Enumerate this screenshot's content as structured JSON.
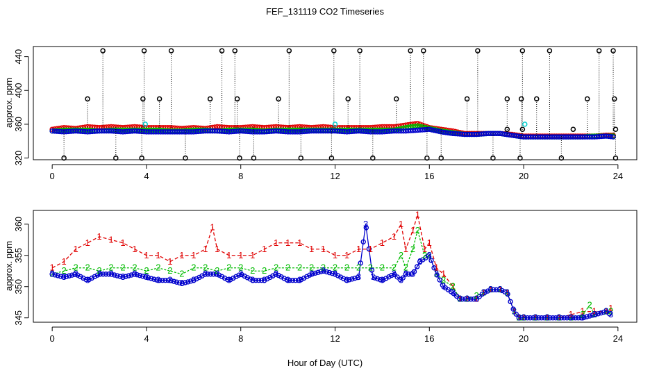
{
  "title": "FEF_131119  CO2 Timeseries",
  "xlabel": "Hour of Day (UTC)",
  "colors": {
    "series1": "#e00000",
    "series2": "#00bb00",
    "series3": "#0000cc",
    "cyan": "#00cccc",
    "black": "#000000"
  },
  "chart_data": [
    {
      "type": "scatter",
      "ylabel": "approx. ppm",
      "xlim": [
        -0.8,
        24.8
      ],
      "ylim": [
        318,
        452
      ],
      "xticks": [
        0,
        4,
        8,
        12,
        16,
        20,
        24
      ],
      "yticks": [
        320,
        360,
        400,
        440
      ],
      "series": [
        {
          "x": [
            0,
            0.5,
            1,
            1.5,
            2,
            2.5,
            3,
            3.5,
            4,
            4.5,
            5,
            5.5,
            6,
            6.5,
            7,
            7.5,
            8,
            8.5,
            9,
            9.5,
            10,
            10.5,
            11,
            11.5,
            12,
            12.5,
            13,
            13.5,
            14,
            14.5,
            15,
            15.5,
            16,
            16.5,
            17,
            17.5,
            18,
            18.5,
            19,
            19.5,
            20,
            20.5,
            21,
            21.5,
            22,
            22.5,
            23,
            23.5,
            23.8
          ],
          "values": [
            354,
            356,
            355,
            357,
            356,
            357,
            356,
            357,
            356,
            356,
            356,
            355,
            356,
            355,
            357,
            356,
            356,
            357,
            356,
            357,
            356,
            357,
            356,
            357,
            356,
            356,
            356,
            356,
            357,
            357,
            359,
            361,
            356,
            354,
            352,
            349,
            349,
            349,
            349,
            348,
            346,
            346,
            346,
            346,
            346,
            346,
            346,
            347,
            347
          ]
        },
        {
          "x": [
            0,
            0.5,
            1,
            1.5,
            2,
            2.5,
            3,
            3.5,
            4,
            4.5,
            5,
            5.5,
            6,
            6.5,
            7,
            7.5,
            8,
            8.5,
            9,
            9.5,
            10,
            10.5,
            11,
            11.5,
            12,
            12.5,
            13,
            13.5,
            14,
            14.5,
            15,
            15.5,
            16,
            16.5,
            17,
            17.5,
            18,
            18.5,
            19,
            19.5,
            20,
            20.5,
            21,
            21.5,
            22,
            22.5,
            23,
            23.5,
            23.8
          ],
          "values": [
            352,
            353,
            353,
            353,
            352,
            353,
            353,
            353,
            353,
            353,
            352,
            352,
            353,
            353,
            352,
            353,
            353,
            353,
            352,
            353,
            353,
            353,
            353,
            353,
            353,
            353,
            353,
            353,
            353,
            353,
            356,
            358,
            355,
            352,
            350,
            348,
            348,
            349,
            349,
            347,
            345,
            345,
            345,
            345,
            345,
            345,
            346,
            346,
            346
          ]
        },
        {
          "x": [
            0,
            0.5,
            1,
            1.5,
            2,
            2.5,
            3,
            3.5,
            4,
            4.5,
            5,
            5.5,
            6,
            6.5,
            7,
            7.5,
            8,
            8.5,
            9,
            9.5,
            10,
            10.5,
            11,
            11.5,
            12,
            12.5,
            13,
            13.5,
            14,
            14.5,
            15,
            15.5,
            16,
            16.5,
            17,
            17.5,
            18,
            18.5,
            19,
            19.5,
            20,
            20.5,
            21,
            21.5,
            22,
            22.5,
            23,
            23.5,
            23.8
          ],
          "values": [
            352,
            351,
            352,
            351,
            352,
            352,
            351,
            352,
            351,
            351,
            351,
            351,
            351,
            352,
            352,
            351,
            352,
            351,
            351,
            352,
            351,
            351,
            352,
            352,
            352,
            351,
            352,
            351,
            351,
            352,
            352,
            353,
            354,
            351,
            349,
            348,
            348,
            349,
            349,
            347,
            345,
            345,
            345,
            345,
            345,
            345,
            345,
            346,
            345
          ]
        }
      ],
      "outliers": {
        "high_x": [
          2.15,
          3.9,
          5.05,
          7.2,
          7.75,
          10.05,
          11.95,
          13.05,
          15.2,
          15.75,
          18.05,
          19.95,
          21.1,
          23.2,
          23.8
        ],
        "high_y": 447,
        "mid_x": [
          1.5,
          3.85,
          4.55,
          6.7,
          7.85,
          9.6,
          12.55,
          14.6,
          17.6,
          19.3,
          19.9,
          20.55,
          22.7,
          23.85
        ],
        "mid_y": 390,
        "low_x": [
          0.5,
          2.7,
          3.8,
          5.65,
          7.95,
          8.55,
          10.55,
          11.85,
          13.6,
          15.9,
          16.5,
          18.7,
          19.85,
          21.6,
          23.9
        ],
        "low_y": 320,
        "near_x": [
          19.3,
          19.95,
          22.1,
          23.9
        ],
        "near_y": 354,
        "cyan_x": [
          3.95,
          12.0,
          20.05
        ],
        "cyan_y": 360
      }
    },
    {
      "type": "line",
      "ylabel": "approx. ppm",
      "xlim": [
        -0.8,
        24.8
      ],
      "ylim": [
        344.3,
        362.2
      ],
      "xticks": [
        0,
        4,
        8,
        12,
        16,
        20,
        24
      ],
      "yticks": [
        345,
        350,
        355,
        360
      ],
      "series": [
        {
          "name": "1",
          "x": [
            0,
            0.5,
            1,
            1.5,
            2,
            2.5,
            3,
            3.5,
            4,
            4.5,
            5,
            5.5,
            6,
            6.5,
            6.8,
            7,
            7.5,
            8,
            8.5,
            9,
            9.5,
            10,
            10.5,
            11,
            11.5,
            12,
            12.5,
            13,
            13.5,
            14,
            14.5,
            14.8,
            15,
            15.3,
            15.5,
            15.8,
            16,
            16.3,
            16.6,
            17,
            17.3,
            17.6,
            18,
            18.3,
            18.6,
            19,
            19.3,
            19.6,
            19.8,
            20,
            20.5,
            21,
            21.5,
            22,
            22.5,
            23,
            23.5,
            23.7
          ],
          "values": [
            353,
            354,
            356,
            357,
            358,
            357.5,
            357,
            356,
            355,
            355,
            354,
            355,
            355,
            356,
            359.5,
            356,
            355,
            355,
            355,
            356,
            357,
            357,
            357,
            356,
            356,
            355,
            355,
            356,
            356,
            357,
            358,
            360,
            356,
            359,
            361.5,
            356,
            357,
            353,
            352,
            350,
            348,
            348,
            348,
            349,
            349.5,
            349.5,
            349,
            346,
            345,
            345,
            345,
            345,
            345,
            345.5,
            346,
            346,
            346,
            346.5
          ]
        },
        {
          "name": "2",
          "x": [
            0,
            0.5,
            1,
            1.5,
            2,
            2.5,
            3,
            3.5,
            4,
            4.5,
            5,
            5.5,
            6,
            6.5,
            7,
            7.5,
            8,
            8.5,
            9,
            9.5,
            10,
            10.5,
            11,
            11.5,
            12,
            12.5,
            13,
            13.5,
            14,
            14.5,
            14.8,
            15,
            15.3,
            15.5,
            15.8,
            16,
            16.3,
            16.6,
            17,
            17.3,
            17.6,
            18,
            18.3,
            18.6,
            19,
            19.3,
            19.6,
            19.8,
            20,
            20.5,
            21,
            21.5,
            22,
            22.5,
            22.8,
            23,
            23.5,
            23.7
          ],
          "values": [
            352,
            352.5,
            353,
            353,
            352.5,
            353,
            353,
            353,
            352.5,
            353,
            352.5,
            352,
            353,
            353,
            352.5,
            353,
            353,
            352.5,
            352.5,
            353,
            353,
            353,
            353,
            353,
            353,
            353,
            353,
            353,
            353,
            353,
            355,
            353,
            356,
            359,
            355,
            355,
            352,
            351,
            350,
            348,
            348,
            348.5,
            349,
            349.5,
            349.5,
            349,
            346,
            345,
            345,
            345,
            345,
            345,
            345,
            345.5,
            347,
            345.5,
            346,
            346
          ]
        },
        {
          "name": "3",
          "x": [
            0,
            0.5,
            1,
            1.5,
            2,
            2.5,
            3,
            3.5,
            4,
            4.5,
            5,
            5.5,
            6,
            6.5,
            7,
            7.5,
            8,
            8.5,
            9,
            9.5,
            10,
            10.5,
            11,
            11.5,
            12,
            12.5,
            13,
            13.3,
            13.6,
            14,
            14.5,
            14.8,
            15,
            15.3,
            15.6,
            16,
            16.3,
            16.6,
            17,
            17.3,
            17.6,
            18,
            18.3,
            18.6,
            19,
            19.3,
            19.6,
            19.8,
            20,
            20.5,
            21,
            21.5,
            22,
            22.5,
            23,
            23.5,
            23.7
          ],
          "values": [
            352,
            351.5,
            352,
            351,
            352,
            352,
            351.5,
            352,
            351.5,
            351,
            351,
            350.5,
            351,
            352,
            352,
            351,
            352,
            351,
            351,
            352,
            351,
            351,
            352,
            352.5,
            352,
            351,
            351.5,
            360,
            351.5,
            351,
            352,
            351,
            352,
            352,
            354,
            355,
            352,
            350,
            349,
            348,
            348,
            348,
            349,
            349.5,
            349.5,
            349,
            346,
            345,
            345,
            345,
            345,
            345,
            345,
            345,
            345.5,
            346,
            345.5
          ]
        }
      ]
    }
  ]
}
